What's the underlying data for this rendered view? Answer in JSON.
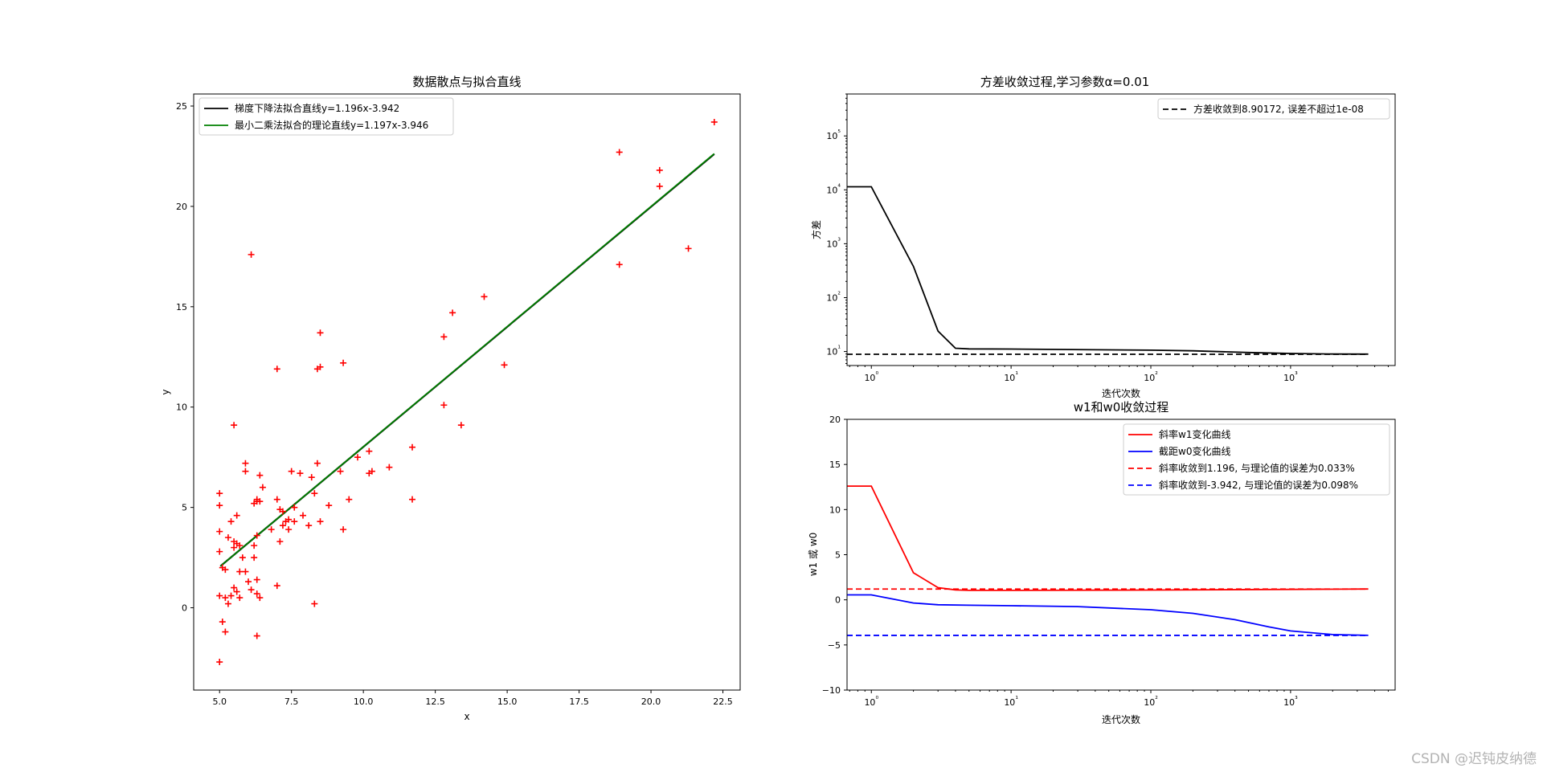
{
  "watermark": "CSDN @迟钝皮纳德",
  "chart_data": [
    {
      "type": "scatter",
      "title": "数据散点与拟合直线",
      "xlabel": "x",
      "ylabel": "y",
      "xlim": [
        4.1,
        23.1
      ],
      "ylim": [
        -4.1,
        25.6
      ],
      "xticks": [
        5.0,
        7.5,
        10.0,
        12.5,
        15.0,
        17.5,
        20.0,
        22.5
      ],
      "xtick_labels": [
        "5.0",
        "7.5",
        "10.0",
        "12.5",
        "15.0",
        "17.5",
        "20.0",
        "22.5"
      ],
      "yticks": [
        0,
        5,
        10,
        15,
        20,
        25
      ],
      "ytick_labels": [
        "0",
        "5",
        "10",
        "15",
        "20",
        "25"
      ],
      "legend_position": "top-left",
      "lines": [
        {
          "name": "梯度下降法拟合直线y=1.196x-3.942",
          "slope": 1.196,
          "intercept": -3.942,
          "x_range": [
            5.03,
            22.2
          ],
          "color": "#000000"
        },
        {
          "name": "最小二乘法拟合的理论直线y=1.197x-3.946",
          "slope": 1.197,
          "intercept": -3.946,
          "x_range": [
            5.03,
            22.2
          ],
          "color": "#008000"
        }
      ],
      "points": [
        [
          6.1,
          17.6
        ],
        [
          5.5,
          9.1
        ],
        [
          5.9,
          7.2
        ],
        [
          5.9,
          6.8
        ],
        [
          6.4,
          6.6
        ],
        [
          6.5,
          6.0
        ],
        [
          5.0,
          5.7
        ],
        [
          5.0,
          5.1
        ],
        [
          5.6,
          4.6
        ],
        [
          5.4,
          4.3
        ],
        [
          5.0,
          3.8
        ],
        [
          5.3,
          3.5
        ],
        [
          5.5,
          3.3
        ],
        [
          5.6,
          3.2
        ],
        [
          5.7,
          3.1
        ],
        [
          5.5,
          3.0
        ],
        [
          5.0,
          2.8
        ],
        [
          5.8,
          2.5
        ],
        [
          5.1,
          2.0
        ],
        [
          5.2,
          1.9
        ],
        [
          5.7,
          1.8
        ],
        [
          5.9,
          1.8
        ],
        [
          6.0,
          1.3
        ],
        [
          5.5,
          1.0
        ],
        [
          5.6,
          0.8
        ],
        [
          5.4,
          0.6
        ],
        [
          5.2,
          0.5
        ],
        [
          5.0,
          0.6
        ],
        [
          5.7,
          0.5
        ],
        [
          5.3,
          0.2
        ],
        [
          5.1,
          -0.7
        ],
        [
          5.2,
          -1.2
        ],
        [
          5.0,
          -2.7
        ],
        [
          6.3,
          5.3
        ],
        [
          6.2,
          5.2
        ],
        [
          6.3,
          5.4
        ],
        [
          6.4,
          5.3
        ],
        [
          6.3,
          3.6
        ],
        [
          6.2,
          3.1
        ],
        [
          6.2,
          2.5
        ],
        [
          6.3,
          1.4
        ],
        [
          6.1,
          0.9
        ],
        [
          6.3,
          0.7
        ],
        [
          6.4,
          0.5
        ],
        [
          6.3,
          -1.4
        ],
        [
          6.8,
          3.9
        ],
        [
          7.0,
          5.4
        ],
        [
          7.0,
          11.9
        ],
        [
          7.1,
          4.9
        ],
        [
          7.2,
          4.8
        ],
        [
          7.2,
          4.1
        ],
        [
          7.1,
          3.3
        ],
        [
          7.3,
          4.3
        ],
        [
          7.4,
          4.4
        ],
        [
          7.4,
          3.9
        ],
        [
          7.5,
          6.8
        ],
        [
          7.6,
          5.0
        ],
        [
          7.6,
          4.3
        ],
        [
          7.0,
          1.1
        ],
        [
          7.8,
          6.7
        ],
        [
          7.9,
          4.6
        ],
        [
          8.1,
          4.1
        ],
        [
          8.2,
          6.5
        ],
        [
          8.3,
          5.7
        ],
        [
          8.4,
          7.2
        ],
        [
          8.4,
          11.9
        ],
        [
          8.5,
          12.0
        ],
        [
          8.5,
          13.7
        ],
        [
          8.5,
          4.3
        ],
        [
          8.3,
          0.2
        ],
        [
          8.8,
          5.1
        ],
        [
          9.2,
          6.8
        ],
        [
          9.3,
          12.2
        ],
        [
          9.3,
          3.9
        ],
        [
          9.5,
          5.4
        ],
        [
          9.8,
          7.5
        ],
        [
          10.2,
          6.7
        ],
        [
          10.2,
          7.8
        ],
        [
          10.3,
          6.8
        ],
        [
          10.9,
          7.0
        ],
        [
          11.7,
          8.0
        ],
        [
          11.7,
          5.4
        ],
        [
          12.8,
          13.5
        ],
        [
          12.8,
          10.1
        ],
        [
          13.1,
          14.7
        ],
        [
          13.4,
          9.1
        ],
        [
          14.2,
          15.5
        ],
        [
          14.9,
          12.1
        ],
        [
          18.9,
          22.7
        ],
        [
          18.9,
          17.1
        ],
        [
          20.3,
          21.8
        ],
        [
          20.3,
          21.0
        ],
        [
          21.3,
          17.9
        ],
        [
          22.2,
          24.2
        ]
      ],
      "marker_color": "#ff0000"
    },
    {
      "type": "line",
      "title": "方差收敛过程,学习参数α=0.01",
      "xlabel": "迭代次数",
      "ylabel": "方差",
      "xscale": "log",
      "yscale": "log",
      "xlim": [
        0.67,
        5600
      ],
      "ylim": [
        5.5,
        600000
      ],
      "xticks": [
        1,
        10,
        100,
        1000
      ],
      "xtick_labels": [
        "10^0",
        "10^1",
        "10^2",
        "10^3"
      ],
      "yticks": [
        10,
        100,
        1000,
        10000,
        100000
      ],
      "ytick_labels": [
        "10^1",
        "10^2",
        "10^3",
        "10^4",
        "10^5"
      ],
      "legend_position": "top-right",
      "series": [
        {
          "name": "",
          "color": "#000000",
          "style": "solid",
          "points": [
            [
              0.67,
              11400
            ],
            [
              1,
              11400
            ],
            [
              2,
              380
            ],
            [
              3,
              24
            ],
            [
              4,
              11.5
            ],
            [
              5,
              11.2
            ],
            [
              10,
              11.1
            ],
            [
              100,
              10.6
            ],
            [
              200,
              10.3
            ],
            [
              500,
              9.6
            ],
            [
              1000,
              9.2
            ],
            [
              2000,
              9.0
            ],
            [
              3600,
              8.95
            ]
          ]
        },
        {
          "name": "方差收敛到8.90172, 误差不超过1e-08",
          "color": "#000000",
          "style": "dashed",
          "constant": 8.90172
        }
      ]
    },
    {
      "type": "line",
      "title": "w1和w0收敛过程",
      "xlabel": "迭代次数",
      "ylabel": "w1 或 w0",
      "xscale": "log",
      "xlim": [
        0.67,
        5600
      ],
      "ylim": [
        -10,
        20
      ],
      "xticks": [
        1,
        10,
        100,
        1000
      ],
      "xtick_labels": [
        "10^0",
        "10^1",
        "10^2",
        "10^3"
      ],
      "yticks": [
        -10,
        -5,
        0,
        5,
        10,
        15,
        20
      ],
      "ytick_labels": [
        "−10",
        "−5",
        "0",
        "5",
        "10",
        "15",
        "20"
      ],
      "legend_position": "top-right",
      "series": [
        {
          "name": "斜率w1变化曲线",
          "color": "#ff0000",
          "style": "solid",
          "points": [
            [
              0.67,
              12.6
            ],
            [
              1,
              12.6
            ],
            [
              2,
              3.0
            ],
            [
              3,
              1.35
            ],
            [
              4,
              1.1
            ],
            [
              5,
              1.05
            ],
            [
              10,
              1.05
            ],
            [
              100,
              1.08
            ],
            [
              1000,
              1.15
            ],
            [
              3600,
              1.196
            ]
          ]
        },
        {
          "name": "截距w0变化曲线",
          "color": "#0000ff",
          "style": "solid",
          "points": [
            [
              0.67,
              0.55
            ],
            [
              1,
              0.55
            ],
            [
              2,
              -0.35
            ],
            [
              3,
              -0.55
            ],
            [
              5,
              -0.6
            ],
            [
              10,
              -0.65
            ],
            [
              30,
              -0.75
            ],
            [
              100,
              -1.1
            ],
            [
              200,
              -1.5
            ],
            [
              400,
              -2.2
            ],
            [
              700,
              -3.0
            ],
            [
              1000,
              -3.45
            ],
            [
              2000,
              -3.85
            ],
            [
              3600,
              -3.94
            ]
          ]
        },
        {
          "name": "斜率收敛到1.196, 与理论值的误差为0.033%",
          "color": "#ff0000",
          "style": "dashed",
          "constant": 1.196
        },
        {
          "name": "斜率收敛到-3.942, 与理论值的误差为0.098%",
          "color": "#0000ff",
          "style": "dashed",
          "constant": -3.942
        }
      ]
    }
  ]
}
